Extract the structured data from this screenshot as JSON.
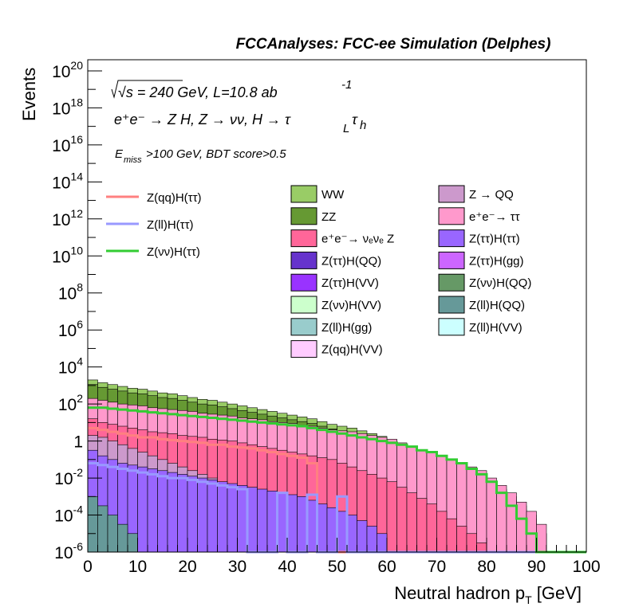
{
  "chart_data": {
    "type": "bar",
    "subtype": "stacked-histogram",
    "title": "FCCAnalyses: FCC-ee Simulation (Delphes)",
    "annotations": {
      "line1": "√s = 240 GeV, L=10.8 ab",
      "line1_sup": "-1",
      "line2": "e⁺e⁻ → Z H, Z → νν, H → τ",
      "line2_subL": "L",
      "line2_tau": "τ",
      "line2_subh": "h",
      "line3_pre": "E",
      "line3_sub": "miss",
      "line3_post": ">100 GeV, BDT score>0.5"
    },
    "xlabel": "Neutral hadron p",
    "xlabel_sub": "T",
    "xlabel_unit": " [GeV]",
    "ylabel": "Events",
    "xlim": [
      0,
      100
    ],
    "ylim_log10": [
      -6,
      20.6
    ],
    "yscale": "log",
    "x_ticks": [
      "0",
      "10",
      "20",
      "30",
      "40",
      "50",
      "60",
      "70",
      "80",
      "90",
      "100"
    ],
    "y_ticks": [
      {
        "base": "10",
        "exp": "-6"
      },
      {
        "base": "10",
        "exp": "-4"
      },
      {
        "base": "10",
        "exp": "-2"
      },
      {
        "base": "1",
        "exp": ""
      },
      {
        "base": "10",
        "exp": "2"
      },
      {
        "base": "10",
        "exp": "4"
      },
      {
        "base": "10",
        "exp": "6"
      },
      {
        "base": "10",
        "exp": "8"
      },
      {
        "base": "10",
        "exp": "10"
      },
      {
        "base": "10",
        "exp": "12"
      },
      {
        "base": "10",
        "exp": "14"
      },
      {
        "base": "10",
        "exp": "16"
      },
      {
        "base": "10",
        "exp": "18"
      },
      {
        "base": "10",
        "exp": "20"
      }
    ],
    "bin_width": 2,
    "stack_tops_log10": {
      "WW": [
        3.3,
        3.15,
        3.05,
        2.95,
        2.85,
        2.8,
        2.7,
        2.6,
        2.55,
        2.45,
        2.35,
        2.25,
        2.2,
        2.1,
        2.0,
        1.9,
        1.8,
        1.7,
        1.6,
        1.5,
        1.4,
        1.3,
        1.2,
        1.05,
        0.9,
        0.8,
        0.7,
        0.55,
        0.4,
        0.25,
        0.05,
        -0.3,
        -0.6,
        -0.8,
        -0.9,
        -1.2,
        -1.4,
        -1.6,
        -1.8,
        -2.0,
        -2.3,
        -2.6,
        -3.0,
        -3.5,
        -4.0,
        -5.0,
        -6.0,
        -6.0,
        -6.0,
        -6.0
      ],
      "ZZ": [
        3.05,
        2.9,
        2.8,
        2.7,
        2.6,
        2.55,
        2.45,
        2.35,
        2.3,
        2.2,
        2.1,
        2.0,
        1.95,
        1.85,
        1.75,
        1.65,
        1.55,
        1.45,
        1.35,
        1.25,
        1.15,
        1.05,
        0.95,
        0.8,
        0.65,
        0.55,
        0.45,
        0.3,
        0.15,
        0.0,
        -0.2,
        -0.5,
        -0.8,
        -1.0,
        -1.1,
        -1.4,
        -1.6,
        -1.8,
        -2.0,
        -2.2,
        -2.5,
        -2.8,
        -3.2,
        -3.7,
        -4.2,
        -5.0,
        -6.0,
        -6.0,
        -6.0,
        -6.0
      ],
      "ee_tautau": [
        2.3,
        2.2,
        2.1,
        2.0,
        1.95,
        1.9,
        1.8,
        1.75,
        1.7,
        1.65,
        1.6,
        1.5,
        1.45,
        1.4,
        1.35,
        1.25,
        1.2,
        1.15,
        1.05,
        1.0,
        0.95,
        0.85,
        0.8,
        0.7,
        0.6,
        0.55,
        0.5,
        0.4,
        0.3,
        0.2,
        0.1,
        -0.1,
        -0.3,
        -0.5,
        -0.6,
        -0.8,
        -1.0,
        -1.2,
        -1.4,
        -1.6,
        -2.0,
        -2.4,
        -2.8,
        -3.3,
        -3.8,
        -4.5,
        -6.0,
        -6.0,
        -6.0,
        -6.0
      ],
      "nunuZ": [
        1.2,
        1.0,
        0.9,
        0.8,
        0.7,
        0.6,
        0.5,
        0.45,
        0.4,
        0.3,
        0.25,
        0.2,
        0.1,
        0.05,
        0.0,
        -0.1,
        -0.2,
        -0.3,
        -0.4,
        -0.5,
        -0.6,
        -0.7,
        -0.8,
        -0.9,
        -1.0,
        -1.2,
        -1.4,
        -1.6,
        -1.8,
        -2.0,
        -2.2,
        -2.5,
        -2.8,
        -3.1,
        -3.4,
        -3.8,
        -4.2,
        -4.6,
        -5.0,
        -5.5,
        -6.0,
        -6.0,
        -6.0,
        -6.0,
        -6.0,
        -6.0,
        -6.0,
        -6.0,
        -6.0,
        -6.0
      ],
      "ZQQ_low": [
        0.3,
        0.2,
        0.0,
        -0.2,
        -0.4,
        -0.6,
        -0.8,
        -1.0,
        -1.2,
        -1.4,
        -1.6,
        -1.8,
        -2.0,
        -2.3,
        -2.6,
        -3.0,
        -3.5,
        -4.0,
        -4.5,
        -5.0,
        -6.0,
        -6.0,
        -6.0,
        -6.0,
        -6.0,
        -6.0,
        -6.0,
        -6.0,
        -6.0,
        -6.0,
        -6.0,
        -6.0,
        -6.0,
        -6.0,
        -6.0,
        -6.0,
        -6.0,
        -6.0,
        -6.0,
        -6.0,
        -6.0,
        -6.0,
        -6.0,
        -6.0,
        -6.0,
        -6.0,
        -6.0,
        -6.0,
        -6.0,
        -6.0
      ],
      "ZtautauHtautau": [
        -0.5,
        -0.8,
        -1.0,
        -1.2,
        -1.3,
        -1.4,
        -1.5,
        -1.6,
        -1.7,
        -1.8,
        -1.9,
        -2.0,
        -2.1,
        -2.2,
        -2.3,
        -2.4,
        -2.5,
        -2.6,
        -2.7,
        -2.8,
        -2.9,
        -3.0,
        -3.2,
        -3.4,
        -3.6,
        -3.8,
        -4.0,
        -4.3,
        -4.6,
        -5.0,
        -6.0,
        -6.0,
        -6.0,
        -6.0,
        -6.0,
        -6.0,
        -6.0,
        -6.0,
        -6.0,
        -6.0,
        -6.0,
        -6.0,
        -6.0,
        -6.0,
        -6.0,
        -6.0,
        -6.0,
        -6.0,
        -6.0,
        -6.0
      ],
      "ZllHQQ": [
        -3.0,
        -3.5,
        -4.0,
        -4.5,
        -5.0,
        -6.0,
        -6.0,
        -6.0,
        -6.0,
        -6.0,
        -6.0,
        -6.0,
        -6.0,
        -6.0,
        -6.0,
        -6.0,
        -6.0,
        -6.0,
        -6.0,
        -6.0,
        -6.0,
        -6.0,
        -6.0,
        -6.0,
        -6.0,
        -6.0,
        -6.0,
        -6.0,
        -6.0,
        -6.0,
        -6.0,
        -6.0,
        -6.0,
        -6.0,
        -6.0,
        -6.0,
        -6.0,
        -6.0,
        -6.0,
        -6.0,
        -6.0,
        -6.0,
        -6.0,
        -6.0,
        -6.0,
        -6.0,
        -6.0,
        -6.0,
        -6.0,
        -6.0
      ]
    },
    "signal_lines_log10": {
      "Z(qq)H(ττ)": [
        0.7,
        0.6,
        0.5,
        0.4,
        0.3,
        0.2,
        0.2,
        0.1,
        0.05,
        0.0,
        -0.05,
        -0.1,
        -0.2,
        -0.2,
        -0.3,
        -0.35,
        -0.4,
        -0.5,
        -0.6,
        -0.7,
        -0.8,
        -0.9,
        -1.2,
        -6.0,
        -6.0,
        -6.0,
        -6.0,
        -6.0,
        -6.0,
        -6.0,
        -6.0,
        -6.0,
        -6.0,
        -6.0,
        -6.0,
        -6.0,
        -6.0,
        -6.0,
        -6.0,
        -6.0,
        -6.0,
        -6.0,
        -6.0,
        -6.0,
        -6.0,
        -6.0,
        -6.0,
        -6.0,
        -6.0,
        -6.0
      ],
      "Z(ll)H(ττ)": [
        -1.2,
        -1.3,
        -1.4,
        -1.5,
        -1.6,
        -1.7,
        -1.8,
        -1.9,
        -2.0,
        -2.0,
        -2.1,
        -2.2,
        -2.3,
        -2.4,
        -2.5,
        -2.6,
        -6.0,
        -6.0,
        -6.0,
        -2.8,
        -6.0,
        -6.0,
        -2.9,
        -6.0,
        -6.0,
        -3.0,
        -6.0,
        -6.0,
        -6.0,
        -6.0,
        -6.0,
        -6.0,
        -6.0,
        -6.0,
        -6.0,
        -6.0,
        -6.0,
        -6.0,
        -6.0,
        -6.0,
        -6.0,
        -6.0,
        -6.0,
        -6.0,
        -6.0,
        -6.0,
        -6.0,
        -6.0,
        -6.0,
        -6.0
      ],
      "Z(νν)H(ττ)": [
        1.8,
        1.8,
        1.75,
        1.7,
        1.65,
        1.6,
        1.55,
        1.5,
        1.45,
        1.4,
        1.35,
        1.3,
        1.25,
        1.2,
        1.15,
        1.1,
        1.05,
        1.0,
        0.95,
        0.9,
        0.85,
        0.8,
        0.7,
        0.6,
        0.5,
        0.4,
        0.3,
        0.2,
        0.1,
        0.0,
        -0.1,
        -0.2,
        -0.3,
        -0.5,
        -0.6,
        -0.8,
        -1.0,
        -1.2,
        -1.5,
        -1.8,
        -2.2,
        -2.8,
        -3.5,
        -4.2,
        -5.0,
        -6.0,
        -6.0,
        -6.0,
        -6.0,
        -6.0
      ]
    },
    "colors": {
      "WW": "#99cc66",
      "ZZ": "#669933",
      "nunuZ": "#ff6699",
      "ZtautauHQQ": "#6633cc",
      "ZtautauHVV": "#9933ff",
      "ZnunuHVV": "#ccffcc",
      "ZllHgg": "#99cccc",
      "ZqqHVV": "#ffccff",
      "ZQQ": "#cc99cc",
      "ee_tautau": "#ff99cc",
      "ZtautauHtautau": "#9966ff",
      "ZtautauHgg": "#cc66ff",
      "ZnunuHQQ": "#669966",
      "ZllHQQ": "#669999",
      "ZllHVV": "#ccffff",
      "sig_qq": "#ff8080",
      "sig_ll": "#9999ff",
      "sig_nunu": "#33cc33"
    },
    "legend_lines": [
      {
        "label": "Z(qq)H(ττ)",
        "color_key": "sig_qq"
      },
      {
        "label": "Z(ll)H(ττ)",
        "color_key": "sig_ll"
      },
      {
        "label": "Z(νν)H(ττ)",
        "color_key": "sig_nunu"
      }
    ],
    "legend_boxes_col1": [
      {
        "label": "WW",
        "color_key": "WW"
      },
      {
        "label": "ZZ",
        "color_key": "ZZ"
      },
      {
        "label": "e⁺e⁻→ νₑνₑ Z",
        "color_key": "nunuZ"
      },
      {
        "label": "Z(ττ)H(QQ)",
        "color_key": "ZtautauHQQ"
      },
      {
        "label": "Z(ττ)H(VV)",
        "color_key": "ZtautauHVV"
      },
      {
        "label": "Z(νν)H(VV)",
        "color_key": "ZnunuHVV"
      },
      {
        "label": "Z(ll)H(gg)",
        "color_key": "ZllHgg"
      },
      {
        "label": "Z(qq)H(VV)",
        "color_key": "ZqqHVV"
      }
    ],
    "legend_boxes_col2": [
      {
        "label": "Z → QQ",
        "color_key": "ZQQ"
      },
      {
        "label": "e⁺e⁻→ ττ",
        "color_key": "ee_tautau"
      },
      {
        "label": "Z(ττ)H(ττ)",
        "color_key": "ZtautauHtautau"
      },
      {
        "label": "Z(ττ)H(gg)",
        "color_key": "ZtautauHgg"
      },
      {
        "label": "Z(νν)H(QQ)",
        "color_key": "ZnunuHQQ"
      },
      {
        "label": "Z(ll)H(QQ)",
        "color_key": "ZllHQQ"
      },
      {
        "label": "Z(ll)H(VV)",
        "color_key": "ZllHVV"
      }
    ]
  }
}
